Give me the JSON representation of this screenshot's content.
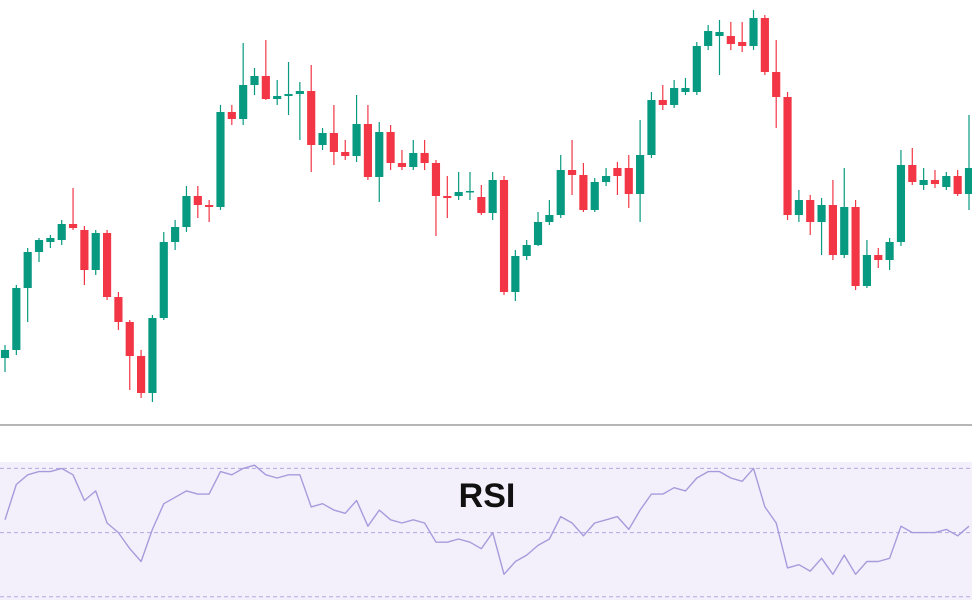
{
  "chart_data": [
    {
      "type": "candlestick",
      "up_color": "#089981",
      "down_color": "#f23645",
      "ylim": [
        0,
        425
      ],
      "open": [
        67,
        75,
        137,
        173,
        183,
        185,
        201,
        195,
        155,
        192,
        128,
        103,
        69,
        32,
        107,
        183,
        198,
        229,
        220,
        218,
        313,
        306,
        340,
        349,
        326,
        329,
        331,
        334,
        280,
        292,
        273,
        269,
        301,
        248,
        293,
        262,
        258,
        272,
        262,
        229,
        229,
        233,
        228,
        212,
        245,
        133,
        169,
        180,
        203,
        210,
        255,
        250,
        215,
        243,
        257,
        257,
        231,
        270,
        325,
        320,
        333,
        333,
        379,
        389,
        389,
        383,
        379,
        407,
        353,
        328,
        210,
        225,
        203,
        220,
        170,
        218,
        139,
        170,
        165,
        183,
        260,
        240,
        245,
        238,
        249,
        231
      ],
      "close": [
        75,
        137,
        173,
        185,
        187,
        201,
        197,
        155,
        192,
        128,
        103,
        69,
        32,
        107,
        183,
        198,
        229,
        220,
        218,
        313,
        306,
        340,
        349,
        326,
        329,
        331,
        334,
        280,
        292,
        273,
        269,
        301,
        248,
        293,
        262,
        258,
        272,
        262,
        229,
        227,
        233,
        234,
        212,
        245,
        133,
        169,
        180,
        203,
        210,
        255,
        250,
        215,
        243,
        249,
        249,
        231,
        270,
        325,
        320,
        337,
        337,
        379,
        394,
        393,
        381,
        379,
        407,
        353,
        328,
        210,
        225,
        203,
        220,
        170,
        218,
        139,
        170,
        165,
        183,
        260,
        243,
        245,
        241,
        249,
        231,
        257
      ],
      "high": [
        80,
        140,
        177,
        187,
        190,
        205,
        237,
        199,
        195,
        195,
        133,
        105,
        75,
        110,
        193,
        205,
        239,
        239,
        225,
        320,
        320,
        382,
        357,
        385,
        345,
        363,
        343,
        360,
        297,
        320,
        285,
        330,
        320,
        303,
        300,
        275,
        285,
        285,
        265,
        249,
        253,
        253,
        240,
        253,
        249,
        175,
        185,
        213,
        225,
        270,
        285,
        262,
        247,
        257,
        263,
        270,
        305,
        333,
        340,
        345,
        347,
        383,
        400,
        405,
        403,
        403,
        415,
        410,
        385,
        333,
        235,
        230,
        227,
        245,
        257,
        225,
        185,
        177,
        187,
        275,
        277,
        257,
        255,
        253,
        255,
        310
      ],
      "low": [
        53,
        70,
        103,
        163,
        177,
        180,
        195,
        140,
        150,
        125,
        95,
        35,
        27,
        23,
        105,
        175,
        193,
        207,
        203,
        215,
        300,
        300,
        330,
        325,
        320,
        310,
        285,
        253,
        275,
        260,
        265,
        263,
        245,
        223,
        255,
        255,
        255,
        255,
        189,
        207,
        225,
        225,
        210,
        205,
        130,
        124,
        165,
        179,
        200,
        207,
        230,
        213,
        213,
        239,
        230,
        217,
        203,
        267,
        315,
        317,
        330,
        330,
        375,
        350,
        375,
        373,
        375,
        350,
        297,
        205,
        203,
        190,
        170,
        165,
        167,
        135,
        137,
        157,
        155,
        179,
        240,
        235,
        237,
        235,
        229,
        215
      ]
    },
    {
      "type": "line",
      "title": "RSI",
      "color": "#a79bdc",
      "ylim": [
        29,
        72
      ],
      "yticks": [
        30,
        50,
        70
      ],
      "grid": true,
      "values": [
        54,
        65,
        68,
        69,
        69,
        70,
        68,
        60,
        63,
        53,
        50,
        45,
        41,
        51,
        59,
        61,
        63,
        62,
        62,
        69,
        68,
        70,
        71,
        68,
        67,
        68,
        68,
        58,
        59,
        57,
        56,
        60,
        52,
        57,
        54,
        53,
        54,
        53,
        47,
        47,
        48,
        47,
        45,
        50,
        37,
        41,
        43,
        46,
        48,
        55,
        53,
        49,
        53,
        54,
        55,
        51,
        57,
        62,
        62,
        64,
        63,
        67,
        69,
        69,
        67,
        66,
        70,
        58,
        53,
        39,
        40,
        38,
        42,
        37,
        43,
        37,
        41,
        41,
        42,
        52,
        50,
        50,
        50,
        51,
        49,
        52
      ]
    }
  ]
}
